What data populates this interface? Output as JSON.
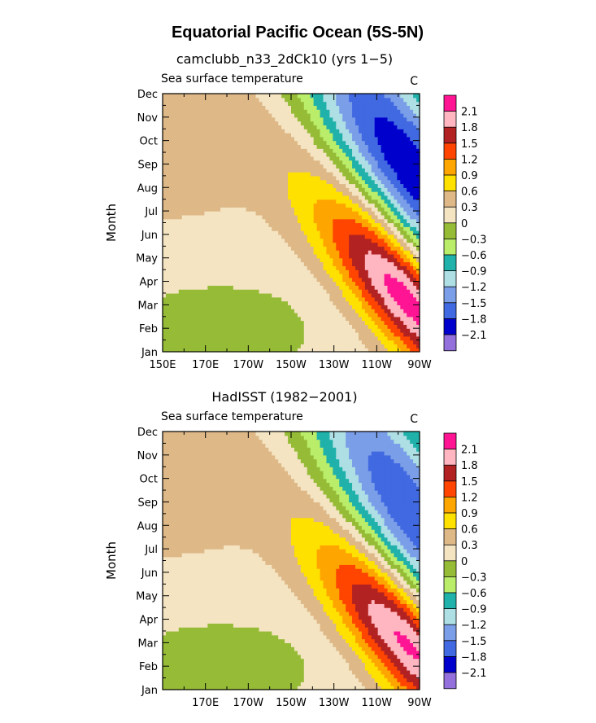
{
  "page": {
    "title": "Equatorial Pacific Ocean (5S-5N)"
  },
  "colors": {
    "levels": [
      "#9370db",
      "#0000cd",
      "#4169e1",
      "#7b9ee8",
      "#aedfe4",
      "#20b2aa",
      "#b9ed6a",
      "#96bc37",
      "#f4e4c2",
      "#deb887",
      "#ffe100",
      "#ffa500",
      "#ff4500",
      "#b22222",
      "#ffb6c1",
      "#ff1493"
    ],
    "outline": "#000000"
  },
  "chart_data": [
    {
      "type": "heatmap",
      "title": "camclubb_n33_2dCk10 (yrs 1−5)",
      "left_label": "Sea surface temperature",
      "units": "C",
      "ylabel": "Month",
      "y_ticks": [
        "Jan",
        "Feb",
        "Mar",
        "Apr",
        "May",
        "Jun",
        "Jul",
        "Aug",
        "Sep",
        "Oct",
        "Nov",
        "Dec"
      ],
      "x_ticks": [
        "150E",
        "170E",
        "170W",
        "150W",
        "130W",
        "110W",
        "90W"
      ],
      "x_range_deg": [
        150,
        270
      ],
      "contour_levels": [
        -2.1,
        -1.8,
        -1.5,
        -1.2,
        -0.9,
        -0.6,
        -0.3,
        0,
        0.3,
        0.6,
        0.9,
        1.2,
        1.5,
        1.8,
        2.1
      ],
      "colorbar_labels": [
        "2.1",
        "1.8",
        "1.5",
        "1.2",
        "0.9",
        "0.6",
        "0.3",
        "0",
        "−0.3",
        "−0.6",
        "−0.9",
        "−1.2",
        "−1.5",
        "−1.8",
        "−2.1"
      ],
      "field_params": {
        "warm_peak": 2.4,
        "warm_lon": 266,
        "warm_month": 3.3,
        "warm_sx": 30,
        "warm_sy": 1.8,
        "warm_tilt": 0.085,
        "cold_peak": -2.2,
        "cold_lon": 266,
        "cold_month": 8.7,
        "cold_sx": 40,
        "cold_sy": 2.8,
        "cold_tilt": 0.11,
        "wedge_amp": 0.35,
        "wedge_lon": 145,
        "wedge_month": 10.5,
        "wedge_sx": 50,
        "wedge_sy": 3.0
      }
    },
    {
      "type": "heatmap",
      "title": "HadISST (1982−2001)",
      "left_label": "Sea surface temperature",
      "units": "C",
      "ylabel": "Month",
      "y_ticks": [
        "Jan",
        "Feb",
        "Mar",
        "Apr",
        "May",
        "Jun",
        "Jul",
        "Aug",
        "Sep",
        "Oct",
        "Nov",
        "Dec"
      ],
      "x_ticks": [
        "",
        "170E",
        "170W",
        "150W",
        "130W",
        "110W",
        "90W"
      ],
      "x_range_deg": [
        150,
        270
      ],
      "contour_levels": [
        -2.1,
        -1.8,
        -1.5,
        -1.2,
        -0.9,
        -0.6,
        -0.3,
        0,
        0.3,
        0.6,
        0.9,
        1.2,
        1.5,
        1.8,
        2.1
      ],
      "colorbar_labels": [
        "2.1",
        "1.8",
        "1.5",
        "1.2",
        "0.9",
        "0.6",
        "0.3",
        "0",
        "−0.3",
        "−0.6",
        "−0.9",
        "−1.2",
        "−1.5",
        "−1.8",
        "−2.1"
      ],
      "field_params": {
        "warm_peak": 2.25,
        "warm_lon": 266,
        "warm_month": 3.0,
        "warm_sx": 30,
        "warm_sy": 1.8,
        "warm_tilt": 0.085,
        "cold_peak": -1.95,
        "cold_lon": 266,
        "cold_month": 8.5,
        "cold_sx": 38,
        "cold_sy": 2.8,
        "cold_tilt": 0.11,
        "wedge_amp": 0.35,
        "wedge_lon": 145,
        "wedge_month": 10.5,
        "wedge_sx": 50,
        "wedge_sy": 3.0
      }
    }
  ]
}
